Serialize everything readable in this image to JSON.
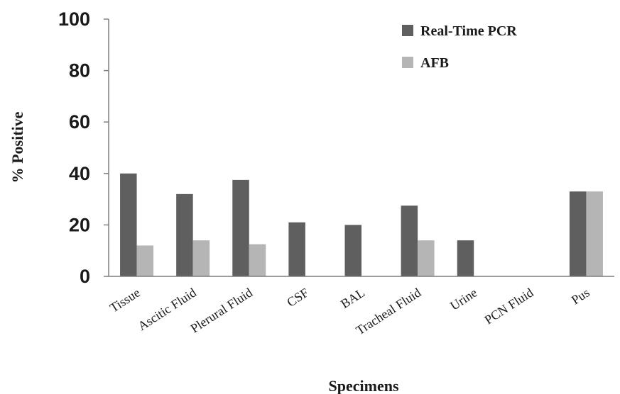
{
  "chart_data": {
    "type": "bar",
    "xlabel": "Specimens",
    "ylabel": "% Positive",
    "ylim": [
      0,
      100
    ],
    "yticks": [
      0,
      20,
      40,
      60,
      80,
      100
    ],
    "grid": false,
    "legend_position": "top-right",
    "categories": [
      "Tissue",
      "Ascitic Fluid",
      "Plerural Fluid",
      "CSF",
      "BAL",
      "Tracheal Fluid",
      "Urine",
      "PCN Fluid",
      "Pus"
    ],
    "series": [
      {
        "name": "Real-Time PCR",
        "color": "#5f5f5f",
        "values": [
          40,
          32,
          37.5,
          21,
          20,
          27.5,
          14,
          0,
          33
        ]
      },
      {
        "name": "AFB",
        "color": "#b5b5b5",
        "values": [
          12,
          14,
          12.5,
          0,
          0,
          14,
          0,
          0,
          33
        ]
      }
    ]
  }
}
